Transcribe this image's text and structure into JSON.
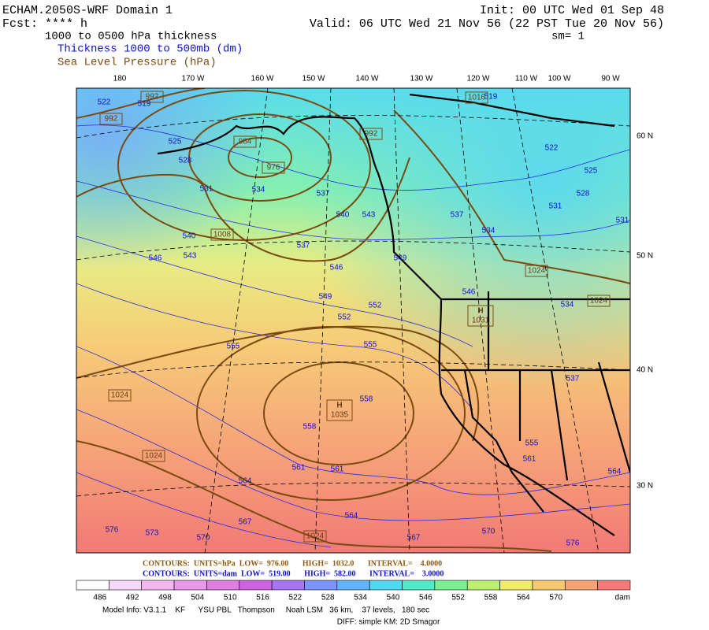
{
  "header": {
    "model": "ECHAM.2050S-WRF Domain 1",
    "init": "Init: 00 UTC Wed 01 Sep 48",
    "fcst": "Fcst: **** h",
    "valid": "Valid: 06 UTC Wed 21 Nov 56 (22 PST Tue 20 Nov 56)",
    "field": "1000 to 0500 hPa thickness",
    "smoothing": "sm= 1",
    "legend_thickness": "Thickness 1000 to 500mb (dm)",
    "legend_pressure": "Sea Level Pressure (hPa)"
  },
  "map": {
    "lon_labels": [
      "180",
      "170 W",
      "160 W",
      "150 W",
      "140 W",
      "130 W",
      "120 W",
      "110 W",
      "100 W",
      "90 W"
    ],
    "lat_labels": [
      "60 N",
      "50 N",
      "40 N",
      "30 N"
    ],
    "thickness_labels": [
      522,
      519,
      525,
      528,
      531,
      534,
      537,
      540,
      543,
      540,
      543,
      546,
      537,
      546,
      549,
      552,
      552,
      555,
      555,
      558,
      558,
      561,
      561,
      564,
      564,
      567,
      567,
      570,
      573,
      576,
      570,
      576,
      549,
      537,
      534,
      522,
      525,
      528,
      531,
      531,
      534,
      537,
      546,
      555,
      561,
      564,
      519
    ],
    "pressure_labels": [
      992,
      992,
      984,
      976,
      992,
      1008,
      1024,
      1024,
      1024,
      1024,
      1024,
      1016
    ],
    "highs": [
      {
        "symbol": "H",
        "label": 1035
      },
      {
        "symbol": "H",
        "label": 1031
      }
    ]
  },
  "contour_info": {
    "pressure": "CONTOURS:  UNITS=hPa  LOW=  976.00       HIGH=  1032.0       INTERVAL=    4.0000",
    "thickness": "CONTOURS:  UNITS=dam  LOW=  519.00       HIGH=  582.00       INTERVAL=    3.0000"
  },
  "colorbar": {
    "labels": [
      486,
      492,
      498,
      504,
      510,
      516,
      522,
      528,
      534,
      540,
      546,
      552,
      558,
      564,
      570
    ],
    "colors": [
      "#ffffff",
      "#f8d8f8",
      "#f2b6f0",
      "#ea98ea",
      "#e07ce2",
      "#cf62e2",
      "#a474f2",
      "#7c94ff",
      "#62b4ff",
      "#52d8f2",
      "#52e8c8",
      "#7af092",
      "#bcf06e",
      "#f2ec6e",
      "#f8c86e",
      "#f8a472",
      "#f87a78"
    ],
    "unit": "dam"
  },
  "footer": {
    "model_info": "Model Info: V3.1.1    KF      YSU PBL   Thompson     Noah LSM   36 km,    37 levels,   180 sec",
    "diffusion": "DIFF: simple KM: 2D Smagor"
  }
}
